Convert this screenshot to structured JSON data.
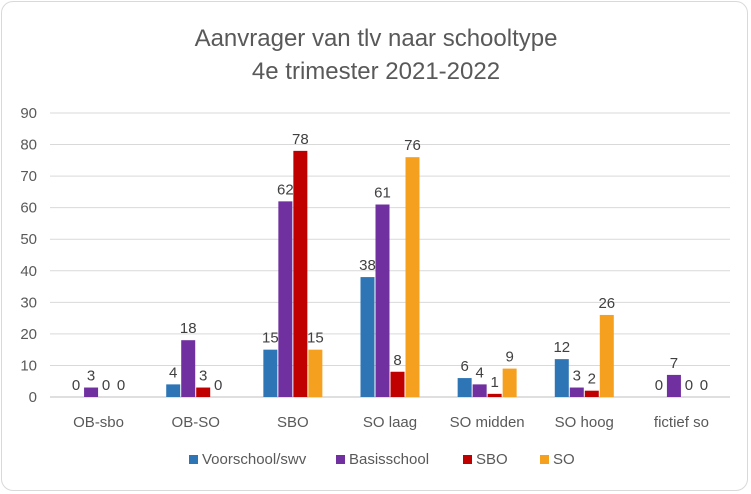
{
  "chart_data": {
    "type": "bar",
    "title": [
      "Aanvrager van tlv naar schooltype",
      "4e trimester 2021-2022"
    ],
    "categories": [
      "OB-sbo",
      "OB-SO",
      "SBO",
      "SO laag",
      "SO midden",
      "SO hoog",
      "fictief so"
    ],
    "series": [
      {
        "name": "Voorschool/swv",
        "color": "#2e75b6",
        "values": [
          0,
          4,
          15,
          38,
          6,
          12,
          0
        ]
      },
      {
        "name": "Basisschool",
        "color": "#7030a0",
        "values": [
          3,
          18,
          62,
          61,
          4,
          3,
          7
        ]
      },
      {
        "name": "SBO",
        "color": "#c00000",
        "values": [
          0,
          3,
          78,
          8,
          1,
          2,
          0
        ]
      },
      {
        "name": "SO",
        "color": "#f5a01e",
        "values": [
          0,
          0,
          15,
          76,
          9,
          26,
          0
        ]
      }
    ],
    "ylim": [
      0,
      90
    ],
    "yticks": [
      0,
      10,
      20,
      30,
      40,
      50,
      60,
      70,
      80,
      90
    ],
    "grid": true,
    "legend": "bottom",
    "xlabel": "",
    "ylabel": ""
  }
}
